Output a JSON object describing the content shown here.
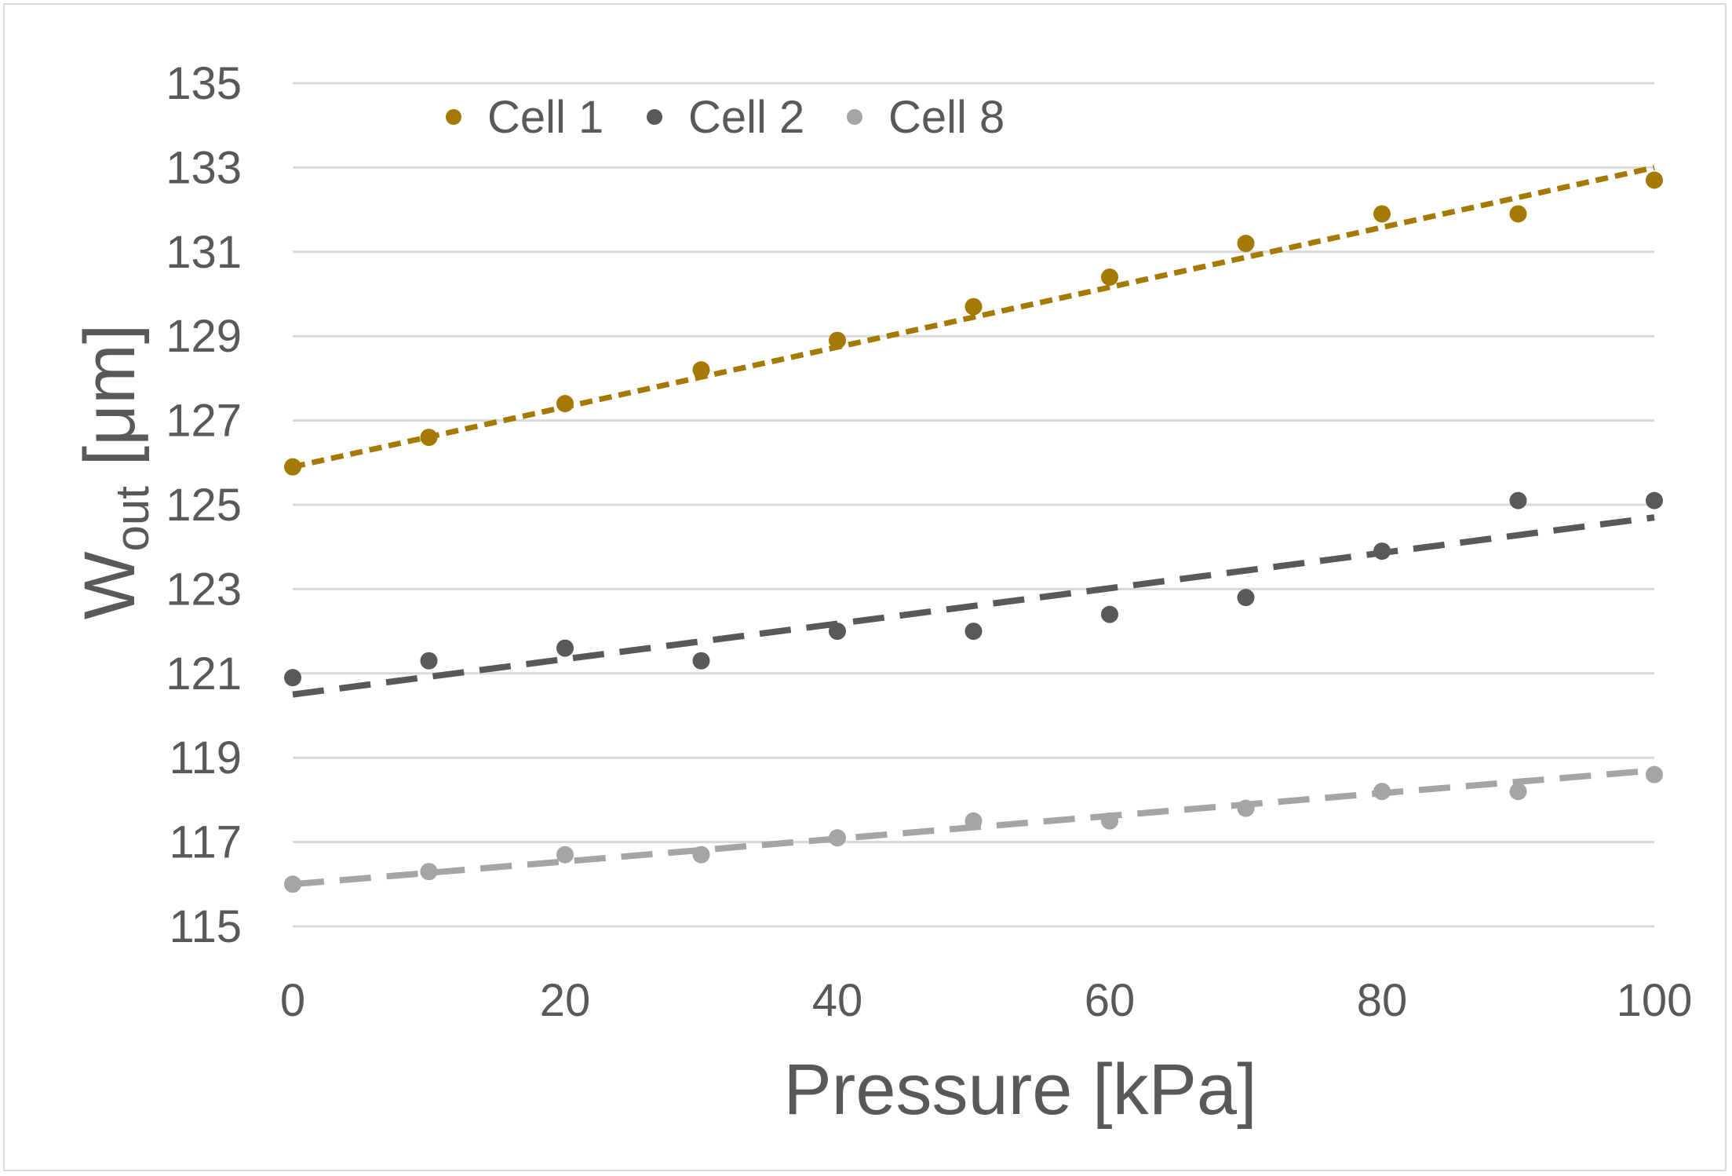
{
  "chart_data": {
    "type": "scatter",
    "title": "",
    "xlabel": "Pressure [kPa]",
    "ylabel": {
      "main": "W",
      "sub": "out",
      "unit": " [μm]"
    },
    "xlim": [
      0,
      100
    ],
    "ylim": [
      115,
      135
    ],
    "xticks": [
      0,
      20,
      40,
      60,
      80,
      100
    ],
    "yticks": [
      115,
      117,
      119,
      121,
      123,
      125,
      127,
      129,
      131,
      133,
      135
    ],
    "grid": "horizontal",
    "legend_position": "top-left",
    "series": [
      {
        "name": "Cell 1",
        "color": "#a47a04",
        "x": [
          0,
          10,
          20,
          30,
          40,
          50,
          60,
          70,
          80,
          90,
          100
        ],
        "y": [
          125.9,
          126.6,
          127.4,
          128.2,
          128.9,
          129.7,
          130.4,
          131.2,
          131.9,
          131.9,
          132.7
        ],
        "trendline": {
          "style": "dotted",
          "y_start": 125.9,
          "y_end": 133.0
        }
      },
      {
        "name": "Cell 2",
        "color": "#595959",
        "x": [
          0,
          10,
          20,
          30,
          40,
          50,
          60,
          70,
          80,
          90,
          100
        ],
        "y": [
          120.9,
          121.3,
          121.6,
          121.3,
          122.0,
          122.0,
          122.4,
          122.8,
          123.9,
          125.1,
          125.1
        ],
        "trendline": {
          "style": "dashed",
          "y_start": 120.5,
          "y_end": 124.7
        }
      },
      {
        "name": "Cell 8",
        "color": "#a5a5a5",
        "x": [
          0,
          10,
          20,
          30,
          40,
          50,
          60,
          70,
          80,
          90,
          100
        ],
        "y": [
          116.0,
          116.3,
          116.7,
          116.7,
          117.1,
          117.5,
          117.5,
          117.8,
          118.2,
          118.2,
          118.6
        ],
        "trendline": {
          "style": "dashed",
          "y_start": 116.0,
          "y_end": 118.7
        }
      }
    ]
  }
}
